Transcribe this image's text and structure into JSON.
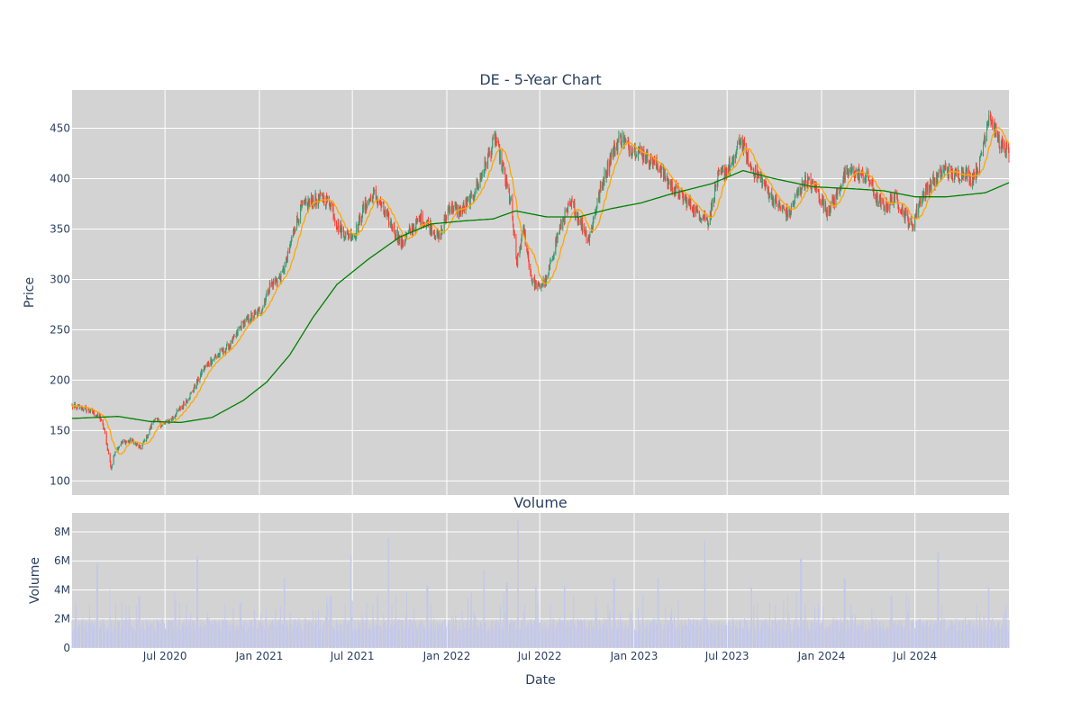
{
  "chart_data": [
    {
      "type": "candlestick",
      "title": "DE - 5-Year Chart",
      "ylabel": "Price",
      "ylim": [
        86,
        488
      ],
      "yticks": [
        100,
        150,
        200,
        250,
        300,
        350,
        400,
        450
      ],
      "grid": true,
      "x_range": [
        "2020-01-02",
        "2024-12-31"
      ],
      "colors": {
        "increasing": "#3d9970",
        "decreasing": "#ff4136",
        "ma_short": "#ffa500",
        "ma_long": "#008000",
        "background": "#d3d3d3"
      },
      "close_keypoints": [
        [
          "2020-01-02",
          174
        ],
        [
          "2020-01-25",
          172
        ],
        [
          "2020-02-10",
          168
        ],
        [
          "2020-02-25",
          163
        ],
        [
          "2020-03-05",
          150
        ],
        [
          "2020-03-12",
          130
        ],
        [
          "2020-03-18",
          112
        ],
        [
          "2020-03-26",
          130
        ],
        [
          "2020-04-08",
          138
        ],
        [
          "2020-04-28",
          140
        ],
        [
          "2020-05-14",
          132
        ],
        [
          "2020-05-28",
          145
        ],
        [
          "2020-06-10",
          162
        ],
        [
          "2020-06-26",
          155
        ],
        [
          "2020-07-15",
          162
        ],
        [
          "2020-08-05",
          175
        ],
        [
          "2020-08-25",
          190
        ],
        [
          "2020-09-15",
          212
        ],
        [
          "2020-10-05",
          222
        ],
        [
          "2020-10-30",
          232
        ],
        [
          "2020-11-12",
          240
        ],
        [
          "2020-11-27",
          255
        ],
        [
          "2020-12-15",
          262
        ],
        [
          "2021-01-05",
          270
        ],
        [
          "2021-01-22",
          295
        ],
        [
          "2021-02-12",
          302
        ],
        [
          "2021-02-24",
          320
        ],
        [
          "2021-03-10",
          352
        ],
        [
          "2021-03-25",
          372
        ],
        [
          "2021-04-15",
          378
        ],
        [
          "2021-05-05",
          380
        ],
        [
          "2021-05-20",
          375
        ],
        [
          "2021-06-03",
          352
        ],
        [
          "2021-06-18",
          345
        ],
        [
          "2021-07-06",
          345
        ],
        [
          "2021-07-22",
          370
        ],
        [
          "2021-08-12",
          385
        ],
        [
          "2021-08-27",
          372
        ],
        [
          "2021-09-17",
          352
        ],
        [
          "2021-10-05",
          335
        ],
        [
          "2021-10-22",
          348
        ],
        [
          "2021-11-12",
          360
        ],
        [
          "2021-12-02",
          352
        ],
        [
          "2021-12-17",
          340
        ],
        [
          "2022-01-05",
          372
        ],
        [
          "2022-01-27",
          368
        ],
        [
          "2022-02-15",
          378
        ],
        [
          "2022-03-04",
          395
        ],
        [
          "2022-03-22",
          420
        ],
        [
          "2022-04-06",
          440
        ],
        [
          "2022-04-22",
          405
        ],
        [
          "2022-05-06",
          375
        ],
        [
          "2022-05-17",
          315
        ],
        [
          "2022-05-31",
          350
        ],
        [
          "2022-06-15",
          300
        ],
        [
          "2022-06-29",
          292
        ],
        [
          "2022-07-15",
          300
        ],
        [
          "2022-08-03",
          340
        ],
        [
          "2022-08-17",
          362
        ],
        [
          "2022-09-02",
          375
        ],
        [
          "2022-09-20",
          355
        ],
        [
          "2022-10-05",
          340
        ],
        [
          "2022-10-20",
          375
        ],
        [
          "2022-11-03",
          400
        ],
        [
          "2022-11-18",
          425
        ],
        [
          "2022-12-05",
          440
        ],
        [
          "2022-12-20",
          432
        ],
        [
          "2023-01-10",
          428
        ],
        [
          "2023-01-30",
          420
        ],
        [
          "2023-02-20",
          410
        ],
        [
          "2023-03-10",
          395
        ],
        [
          "2023-03-30",
          385
        ],
        [
          "2023-04-18",
          375
        ],
        [
          "2023-05-10",
          365
        ],
        [
          "2023-05-26",
          358
        ],
        [
          "2023-06-12",
          400
        ],
        [
          "2023-06-28",
          408
        ],
        [
          "2023-07-12",
          415
        ],
        [
          "2023-07-27",
          440
        ],
        [
          "2023-08-15",
          412
        ],
        [
          "2023-09-05",
          400
        ],
        [
          "2023-09-25",
          382
        ],
        [
          "2023-10-12",
          372
        ],
        [
          "2023-10-30",
          365
        ],
        [
          "2023-11-15",
          385
        ],
        [
          "2023-12-01",
          398
        ],
        [
          "2023-12-20",
          392
        ],
        [
          "2024-01-10",
          368
        ],
        [
          "2024-01-25",
          378
        ],
        [
          "2024-02-12",
          400
        ],
        [
          "2024-02-28",
          408
        ],
        [
          "2024-03-14",
          405
        ],
        [
          "2024-04-02",
          400
        ],
        [
          "2024-04-18",
          378
        ],
        [
          "2024-05-06",
          372
        ],
        [
          "2024-05-22",
          382
        ],
        [
          "2024-06-07",
          368
        ],
        [
          "2024-06-25",
          352
        ],
        [
          "2024-07-10",
          378
        ],
        [
          "2024-07-26",
          392
        ],
        [
          "2024-08-12",
          400
        ],
        [
          "2024-08-29",
          410
        ],
        [
          "2024-09-16",
          402
        ],
        [
          "2024-10-04",
          408
        ],
        [
          "2024-10-18",
          400
        ],
        [
          "2024-11-04",
          415
        ],
        [
          "2024-11-22",
          465
        ],
        [
          "2024-12-06",
          445
        ],
        [
          "2024-12-20",
          428
        ],
        [
          "2024-12-31",
          426
        ]
      ],
      "ma_long_keypoints": [
        [
          "2020-01-02",
          162
        ],
        [
          "2020-04-01",
          164
        ],
        [
          "2020-06-01",
          159
        ],
        [
          "2020-08-01",
          158
        ],
        [
          "2020-10-01",
          163
        ],
        [
          "2020-12-01",
          180
        ],
        [
          "2021-01-15",
          198
        ],
        [
          "2021-03-01",
          225
        ],
        [
          "2021-04-15",
          262
        ],
        [
          "2021-06-01",
          295
        ],
        [
          "2021-08-01",
          320
        ],
        [
          "2021-10-01",
          342
        ],
        [
          "2021-12-01",
          355
        ],
        [
          "2022-02-01",
          358
        ],
        [
          "2022-04-01",
          360
        ],
        [
          "2022-05-15",
          368
        ],
        [
          "2022-07-15",
          362
        ],
        [
          "2022-09-15",
          362
        ],
        [
          "2022-11-15",
          370
        ],
        [
          "2023-01-15",
          376
        ],
        [
          "2023-03-15",
          385
        ],
        [
          "2023-06-01",
          395
        ],
        [
          "2023-08-01",
          408
        ],
        [
          "2023-10-01",
          400
        ],
        [
          "2023-12-15",
          392
        ],
        [
          "2024-03-01",
          390
        ],
        [
          "2024-05-01",
          388
        ],
        [
          "2024-07-01",
          382
        ],
        [
          "2024-09-01",
          382
        ],
        [
          "2024-11-15",
          386
        ],
        [
          "2024-12-31",
          396
        ]
      ]
    },
    {
      "type": "bar",
      "title": "Volume",
      "ylabel": "Volume",
      "xlabel": "Date",
      "ylim": [
        0,
        9300000
      ],
      "yticks": [
        0,
        2000000,
        4000000,
        6000000,
        8000000
      ],
      "ytick_labels": [
        "0",
        "2M",
        "4M",
        "6M",
        "8M"
      ],
      "xticks": [
        "2020-07-01",
        "2021-01-01",
        "2021-07-01",
        "2022-01-01",
        "2022-07-01",
        "2023-01-01",
        "2023-07-01",
        "2024-01-01",
        "2024-07-01"
      ],
      "xtick_labels": [
        "Jul 2020",
        "Jan 2021",
        "Jul 2021",
        "Jan 2022",
        "Jul 2022",
        "Jan 2023",
        "Jul 2023",
        "Jan 2024",
        "Jul 2024"
      ],
      "grid": true,
      "colors": {
        "bar": "#c5c8e8",
        "background": "#d3d3d3"
      },
      "volume_baseline": 1500000,
      "volume_spikes": [
        [
          "2020-02-20",
          5800000
        ],
        [
          "2020-03-15",
          4000000
        ],
        [
          "2020-05-12",
          3600000
        ],
        [
          "2020-09-02",
          6300000
        ],
        [
          "2020-11-25",
          3100000
        ],
        [
          "2021-02-19",
          4800000
        ],
        [
          "2021-05-20",
          3600000
        ],
        [
          "2021-06-28",
          6400000
        ],
        [
          "2021-08-20",
          3600000
        ],
        [
          "2021-09-10",
          7600000
        ],
        [
          "2021-11-24",
          4300000
        ],
        [
          "2022-02-18",
          3800000
        ],
        [
          "2022-03-14",
          5400000
        ],
        [
          "2022-04-28",
          4500000
        ],
        [
          "2022-05-20",
          8800000
        ],
        [
          "2022-06-24",
          4200000
        ],
        [
          "2022-08-19",
          4300000
        ],
        [
          "2022-11-23",
          4800000
        ],
        [
          "2023-02-17",
          4800000
        ],
        [
          "2023-05-19",
          7400000
        ],
        [
          "2023-08-18",
          4200000
        ],
        [
          "2023-11-22",
          6200000
        ],
        [
          "2024-02-15",
          4800000
        ],
        [
          "2024-05-16",
          3600000
        ],
        [
          "2024-08-15",
          6600000
        ],
        [
          "2024-11-22",
          4200000
        ]
      ]
    }
  ]
}
